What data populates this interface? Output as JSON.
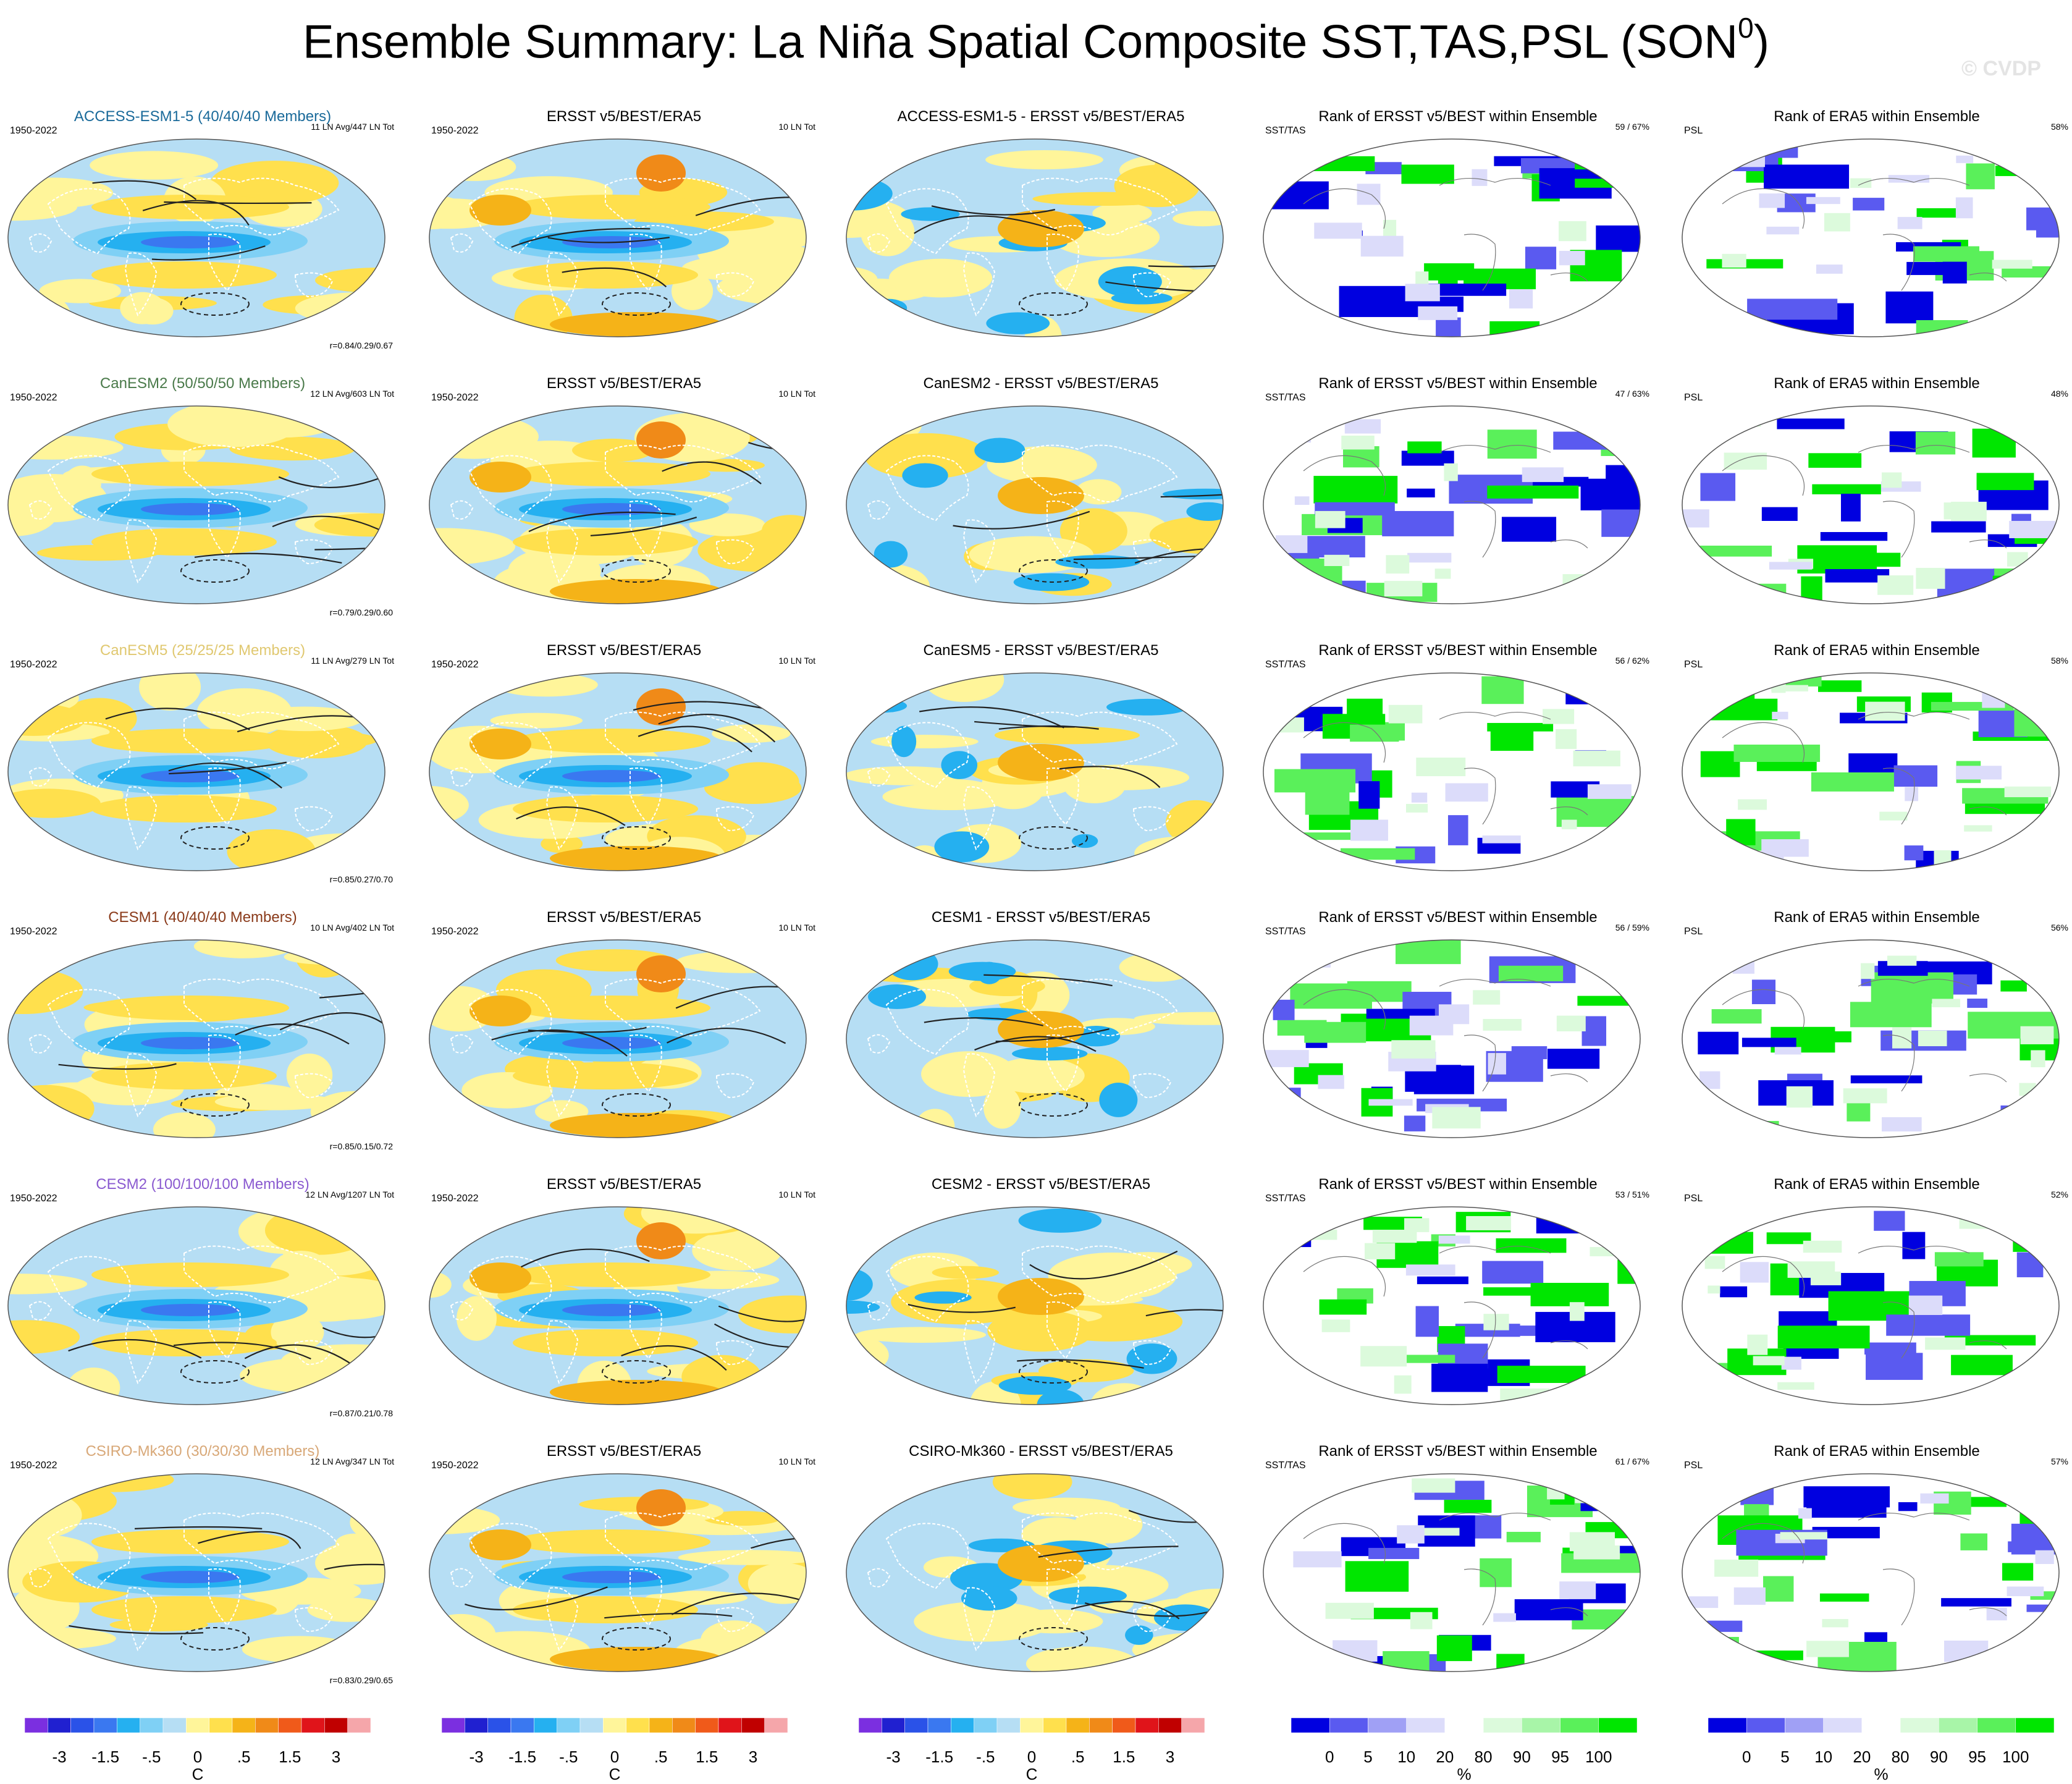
{
  "title": {
    "main": "Ensemble Summary: La Niña Spatial Composite SST,TAS,PSL (SON",
    "sup": "0",
    "close": ")"
  },
  "watermark": "© CVDP",
  "colors": {
    "cool": [
      "#7b2fe0",
      "#2020d0",
      "#2a52e8",
      "#3a78f0",
      "#25b0f0",
      "#7fd0f5",
      "#b6def4"
    ],
    "warm": [
      "#fff59a",
      "#ffe04d",
      "#f5b318",
      "#f08a18",
      "#f05a1a",
      "#e0141a",
      "#c00000",
      "#f5a6aa"
    ],
    "rank": [
      "#0000e0",
      "#5a5af0",
      "#a0a0f5",
      "#dcdcfa",
      "#ffffff",
      "#dcfadc",
      "#a8f5a8",
      "#5af05a",
      "#00e600"
    ],
    "coast": "#ffffff",
    "contour": "#222222"
  },
  "rows": [
    {
      "model": "ACCESS-ESM1-5 (40/40/40 Members)",
      "model_color": "#1a6a9a",
      "ln_info": "11 LN Avg/447 LN Tot",
      "corr": "r=0.84/0.29/0.67",
      "diff_title": "ACCESS-ESM1-5 - ERSST v5/BEST/ERA5",
      "rank_sst_pct": "59 /  67%",
      "rank_psl_pct": "58%"
    },
    {
      "model": "CanESM2 (50/50/50 Members)",
      "model_color": "#4a7a4a",
      "ln_info": "12 LN Avg/603 LN Tot",
      "corr": "r=0.79/0.29/0.60",
      "diff_title": "CanESM2 - ERSST v5/BEST/ERA5",
      "rank_sst_pct": "47 /  63%",
      "rank_psl_pct": "48%"
    },
    {
      "model": "CanESM5 (25/25/25 Members)",
      "model_color": "#e0c870",
      "ln_info": "11 LN Avg/279 LN Tot",
      "corr": "r=0.85/0.27/0.70",
      "diff_title": "CanESM5 - ERSST v5/BEST/ERA5",
      "rank_sst_pct": "56 /  62%",
      "rank_psl_pct": "58%"
    },
    {
      "model": "CESM1 (40/40/40 Members)",
      "model_color": "#8a3a1a",
      "ln_info": "10 LN Avg/402 LN Tot",
      "corr": "r=0.85/0.15/0.72",
      "diff_title": "CESM1 - ERSST v5/BEST/ERA5",
      "rank_sst_pct": "56 /  59%",
      "rank_psl_pct": "56%"
    },
    {
      "model": "CESM2 (100/100/100 Members)",
      "model_color": "#8a5ad0",
      "ln_info": "12 LN Avg/1207 LN Tot",
      "corr": "r=0.87/0.21/0.78",
      "diff_title": "CESM2 - ERSST v5/BEST/ERA5",
      "rank_sst_pct": "53 /  51%",
      "rank_psl_pct": "52%"
    },
    {
      "model": "CSIRO-Mk360 (30/30/30 Members)",
      "model_color": "#d8a878",
      "ln_info": "12 LN Avg/347 LN Tot",
      "corr": "r=0.83/0.29/0.65",
      "diff_title": "CSIRO-Mk360 - ERSST v5/BEST/ERA5",
      "rank_sst_pct": "61 /  67%",
      "rank_psl_pct": "57%"
    }
  ],
  "common": {
    "years": "1950-2022",
    "obs_title": "ERSST v5/BEST/ERA5",
    "obs_ln": "10 LN Tot",
    "rank_sst_title": "Rank of ERSST v5/BEST within Ensemble",
    "rank_sst_left": "SST/TAS",
    "rank_psl_title": "Rank of ERA5 within Ensemble",
    "rank_psl_left": "PSL"
  },
  "chart_data": [
    {
      "type": "heatmap",
      "label": "ensemble mean composite",
      "colorbar_ticks": [
        "-3",
        "-1.5",
        "-.5",
        "0",
        ".5",
        "1.5",
        "3"
      ],
      "units": "C"
    },
    {
      "type": "heatmap",
      "label": "observed composite",
      "colorbar_ticks": [
        "-3",
        "-1.5",
        "-.5",
        "0",
        ".5",
        "1.5",
        "3"
      ],
      "units": "C"
    },
    {
      "type": "heatmap",
      "label": "difference",
      "colorbar_ticks": [
        "-3",
        "-1.5",
        "-.5",
        "0",
        ".5",
        "1.5",
        "3"
      ],
      "units": "C"
    },
    {
      "type": "heatmap",
      "label": "rank sst/tas",
      "colorbar_ticks": [
        "0",
        "5",
        "10",
        "20",
        "80",
        "90",
        "95",
        "100"
      ],
      "units": "%"
    },
    {
      "type": "heatmap",
      "label": "rank psl",
      "colorbar_ticks": [
        "0",
        "5",
        "10",
        "20",
        "80",
        "90",
        "95",
        "100"
      ],
      "units": "%"
    }
  ]
}
